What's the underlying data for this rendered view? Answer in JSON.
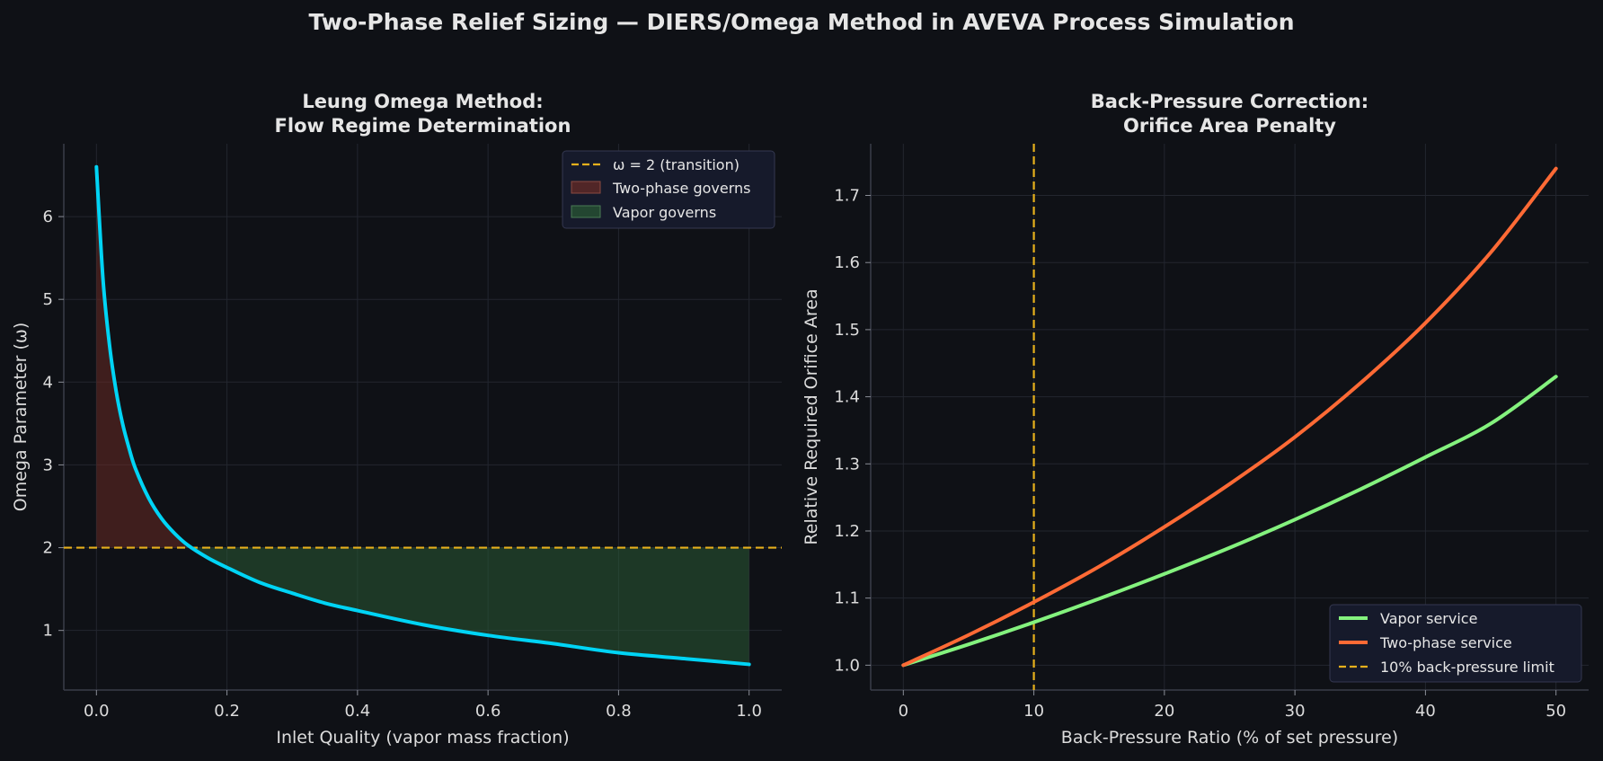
{
  "figure": {
    "title": "Two-Phase Relief Sizing — DIERS/Omega Method in AVEVA Process Simulation",
    "background": "#0f1116"
  },
  "chart_data": [
    {
      "type": "line",
      "title_lines": [
        "Leung Omega Method:",
        "Flow Regime Determination"
      ],
      "xlabel": "Inlet Quality (vapor mass fraction)",
      "ylabel": "Omega Parameter (ω)",
      "xlim": [
        -0.05,
        1.05
      ],
      "ylim": [
        0.28,
        6.88
      ],
      "xticks": [
        0.0,
        0.2,
        0.4,
        0.6,
        0.8,
        1.0
      ],
      "xtick_labels": [
        "0.0",
        "0.2",
        "0.4",
        "0.6",
        "0.8",
        "1.0"
      ],
      "yticks": [
        1,
        2,
        3,
        4,
        5,
        6
      ],
      "ytick_labels": [
        "1",
        "2",
        "3",
        "4",
        "5",
        "6"
      ],
      "grid": true,
      "legend_position": "top-right",
      "series": [
        {
          "role": "omega-curve",
          "color": "#00d4f5",
          "x": [
            0.0,
            0.01,
            0.02,
            0.03,
            0.04,
            0.05,
            0.06,
            0.08,
            0.1,
            0.12,
            0.14,
            0.17,
            0.2,
            0.25,
            0.3,
            0.35,
            0.4,
            0.5,
            0.6,
            0.7,
            0.8,
            0.9,
            1.0
          ],
          "y": [
            6.6,
            5.25,
            4.45,
            3.9,
            3.5,
            3.2,
            2.95,
            2.6,
            2.35,
            2.17,
            2.03,
            1.88,
            1.76,
            1.58,
            1.45,
            1.33,
            1.24,
            1.07,
            0.94,
            0.84,
            0.73,
            0.66,
            0.59
          ]
        }
      ],
      "reference_line": {
        "y": 2,
        "label": "ω = 2 (transition)",
        "color": "#e6b01c"
      },
      "regions": [
        {
          "label": "Two-phase governs",
          "color": "#7a2e25"
        },
        {
          "label": "Vapor governs",
          "color": "#2a5a34"
        }
      ]
    },
    {
      "type": "line",
      "title_lines": [
        "Back-Pressure Correction:",
        "Orifice Area Penalty"
      ],
      "xlabel": "Back-Pressure Ratio (% of set pressure)",
      "ylabel": "Relative Required Orifice Area",
      "xlim": [
        -2.5,
        52.5
      ],
      "ylim": [
        0.963,
        1.777
      ],
      "xticks": [
        0,
        10,
        20,
        30,
        40,
        50
      ],
      "xtick_labels": [
        "0",
        "10",
        "20",
        "30",
        "40",
        "50"
      ],
      "yticks": [
        1.0,
        1.1,
        1.2,
        1.3,
        1.4,
        1.5,
        1.6,
        1.7
      ],
      "ytick_labels": [
        "1.0",
        "1.1",
        "1.2",
        "1.3",
        "1.4",
        "1.5",
        "1.6",
        "1.7"
      ],
      "grid": true,
      "legend_position": "bottom-right",
      "series": [
        {
          "name": "Vapor service",
          "color": "#84f27e",
          "x": [
            0,
            5,
            10,
            15,
            20,
            25,
            30,
            35,
            40,
            45,
            50
          ],
          "y": [
            1.0,
            1.031,
            1.064,
            1.099,
            1.136,
            1.175,
            1.217,
            1.262,
            1.31,
            1.36,
            1.43
          ]
        },
        {
          "name": "Two-phase service",
          "color": "#ff6a35",
          "x": [
            0,
            5,
            10,
            15,
            20,
            25,
            30,
            35,
            40,
            45,
            50
          ],
          "y": [
            1.0,
            1.045,
            1.094,
            1.147,
            1.206,
            1.27,
            1.34,
            1.42,
            1.51,
            1.615,
            1.74
          ]
        }
      ],
      "reference_line": {
        "x": 10,
        "label": "10% back-pressure limit",
        "color": "#e6b01c"
      }
    }
  ]
}
